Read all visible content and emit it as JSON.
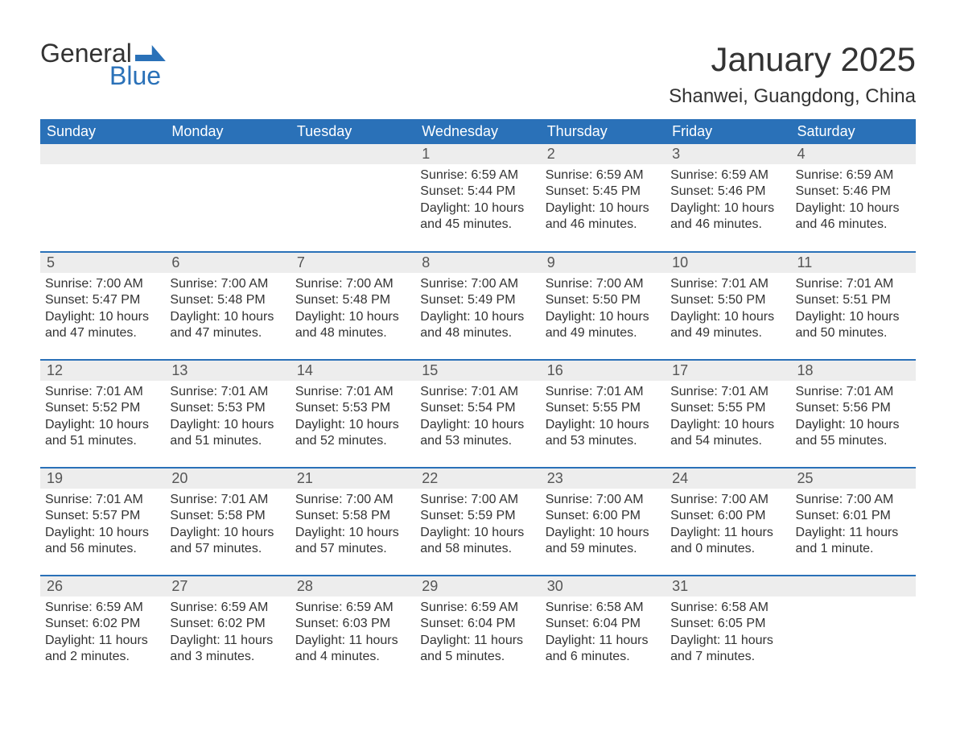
{
  "logo": {
    "word1": "General",
    "word2": "Blue"
  },
  "title": "January 2025",
  "location": "Shanwei, Guangdong, China",
  "header_colors": {
    "brand_blue": "#2a71b8",
    "row_gray": "#ededed",
    "text_dark": "#333333"
  },
  "daynames": [
    "Sunday",
    "Monday",
    "Tuesday",
    "Wednesday",
    "Thursday",
    "Friday",
    "Saturday"
  ],
  "weeks": [
    [
      null,
      null,
      null,
      {
        "n": "1",
        "sr": "Sunrise: 6:59 AM",
        "ss": "Sunset: 5:44 PM",
        "d1": "Daylight: 10 hours",
        "d2": "and 45 minutes."
      },
      {
        "n": "2",
        "sr": "Sunrise: 6:59 AM",
        "ss": "Sunset: 5:45 PM",
        "d1": "Daylight: 10 hours",
        "d2": "and 46 minutes."
      },
      {
        "n": "3",
        "sr": "Sunrise: 6:59 AM",
        "ss": "Sunset: 5:46 PM",
        "d1": "Daylight: 10 hours",
        "d2": "and 46 minutes."
      },
      {
        "n": "4",
        "sr": "Sunrise: 6:59 AM",
        "ss": "Sunset: 5:46 PM",
        "d1": "Daylight: 10 hours",
        "d2": "and 46 minutes."
      }
    ],
    [
      {
        "n": "5",
        "sr": "Sunrise: 7:00 AM",
        "ss": "Sunset: 5:47 PM",
        "d1": "Daylight: 10 hours",
        "d2": "and 47 minutes."
      },
      {
        "n": "6",
        "sr": "Sunrise: 7:00 AM",
        "ss": "Sunset: 5:48 PM",
        "d1": "Daylight: 10 hours",
        "d2": "and 47 minutes."
      },
      {
        "n": "7",
        "sr": "Sunrise: 7:00 AM",
        "ss": "Sunset: 5:48 PM",
        "d1": "Daylight: 10 hours",
        "d2": "and 48 minutes."
      },
      {
        "n": "8",
        "sr": "Sunrise: 7:00 AM",
        "ss": "Sunset: 5:49 PM",
        "d1": "Daylight: 10 hours",
        "d2": "and 48 minutes."
      },
      {
        "n": "9",
        "sr": "Sunrise: 7:00 AM",
        "ss": "Sunset: 5:50 PM",
        "d1": "Daylight: 10 hours",
        "d2": "and 49 minutes."
      },
      {
        "n": "10",
        "sr": "Sunrise: 7:01 AM",
        "ss": "Sunset: 5:50 PM",
        "d1": "Daylight: 10 hours",
        "d2": "and 49 minutes."
      },
      {
        "n": "11",
        "sr": "Sunrise: 7:01 AM",
        "ss": "Sunset: 5:51 PM",
        "d1": "Daylight: 10 hours",
        "d2": "and 50 minutes."
      }
    ],
    [
      {
        "n": "12",
        "sr": "Sunrise: 7:01 AM",
        "ss": "Sunset: 5:52 PM",
        "d1": "Daylight: 10 hours",
        "d2": "and 51 minutes."
      },
      {
        "n": "13",
        "sr": "Sunrise: 7:01 AM",
        "ss": "Sunset: 5:53 PM",
        "d1": "Daylight: 10 hours",
        "d2": "and 51 minutes."
      },
      {
        "n": "14",
        "sr": "Sunrise: 7:01 AM",
        "ss": "Sunset: 5:53 PM",
        "d1": "Daylight: 10 hours",
        "d2": "and 52 minutes."
      },
      {
        "n": "15",
        "sr": "Sunrise: 7:01 AM",
        "ss": "Sunset: 5:54 PM",
        "d1": "Daylight: 10 hours",
        "d2": "and 53 minutes."
      },
      {
        "n": "16",
        "sr": "Sunrise: 7:01 AM",
        "ss": "Sunset: 5:55 PM",
        "d1": "Daylight: 10 hours",
        "d2": "and 53 minutes."
      },
      {
        "n": "17",
        "sr": "Sunrise: 7:01 AM",
        "ss": "Sunset: 5:55 PM",
        "d1": "Daylight: 10 hours",
        "d2": "and 54 minutes."
      },
      {
        "n": "18",
        "sr": "Sunrise: 7:01 AM",
        "ss": "Sunset: 5:56 PM",
        "d1": "Daylight: 10 hours",
        "d2": "and 55 minutes."
      }
    ],
    [
      {
        "n": "19",
        "sr": "Sunrise: 7:01 AM",
        "ss": "Sunset: 5:57 PM",
        "d1": "Daylight: 10 hours",
        "d2": "and 56 minutes."
      },
      {
        "n": "20",
        "sr": "Sunrise: 7:01 AM",
        "ss": "Sunset: 5:58 PM",
        "d1": "Daylight: 10 hours",
        "d2": "and 57 minutes."
      },
      {
        "n": "21",
        "sr": "Sunrise: 7:00 AM",
        "ss": "Sunset: 5:58 PM",
        "d1": "Daylight: 10 hours",
        "d2": "and 57 minutes."
      },
      {
        "n": "22",
        "sr": "Sunrise: 7:00 AM",
        "ss": "Sunset: 5:59 PM",
        "d1": "Daylight: 10 hours",
        "d2": "and 58 minutes."
      },
      {
        "n": "23",
        "sr": "Sunrise: 7:00 AM",
        "ss": "Sunset: 6:00 PM",
        "d1": "Daylight: 10 hours",
        "d2": "and 59 minutes."
      },
      {
        "n": "24",
        "sr": "Sunrise: 7:00 AM",
        "ss": "Sunset: 6:00 PM",
        "d1": "Daylight: 11 hours",
        "d2": "and 0 minutes."
      },
      {
        "n": "25",
        "sr": "Sunrise: 7:00 AM",
        "ss": "Sunset: 6:01 PM",
        "d1": "Daylight: 11 hours",
        "d2": "and 1 minute."
      }
    ],
    [
      {
        "n": "26",
        "sr": "Sunrise: 6:59 AM",
        "ss": "Sunset: 6:02 PM",
        "d1": "Daylight: 11 hours",
        "d2": "and 2 minutes."
      },
      {
        "n": "27",
        "sr": "Sunrise: 6:59 AM",
        "ss": "Sunset: 6:02 PM",
        "d1": "Daylight: 11 hours",
        "d2": "and 3 minutes."
      },
      {
        "n": "28",
        "sr": "Sunrise: 6:59 AM",
        "ss": "Sunset: 6:03 PM",
        "d1": "Daylight: 11 hours",
        "d2": "and 4 minutes."
      },
      {
        "n": "29",
        "sr": "Sunrise: 6:59 AM",
        "ss": "Sunset: 6:04 PM",
        "d1": "Daylight: 11 hours",
        "d2": "and 5 minutes."
      },
      {
        "n": "30",
        "sr": "Sunrise: 6:58 AM",
        "ss": "Sunset: 6:04 PM",
        "d1": "Daylight: 11 hours",
        "d2": "and 6 minutes."
      },
      {
        "n": "31",
        "sr": "Sunrise: 6:58 AM",
        "ss": "Sunset: 6:05 PM",
        "d1": "Daylight: 11 hours",
        "d2": "and 7 minutes."
      },
      null
    ]
  ]
}
